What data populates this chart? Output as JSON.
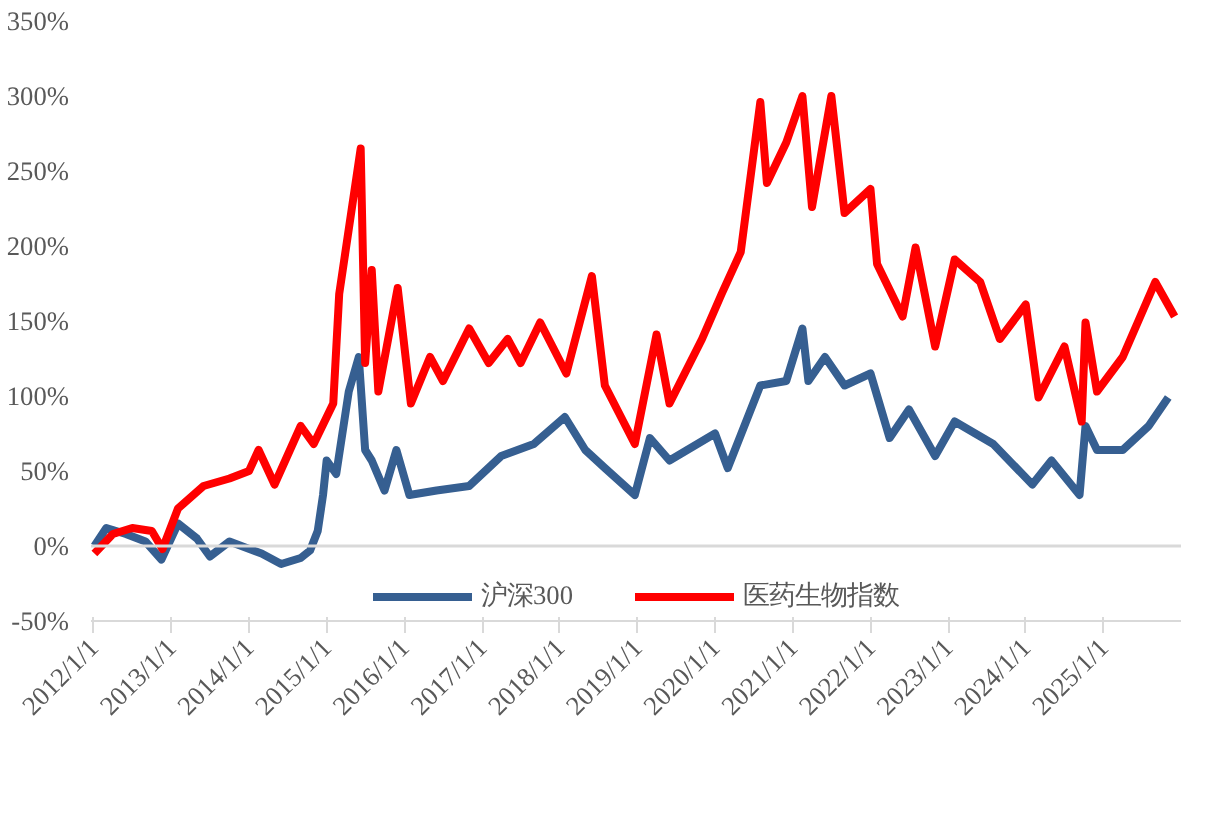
{
  "chart_data": {
    "type": "line",
    "ylim": [
      -50,
      350
    ],
    "yticks": [
      {
        "value": -50,
        "label": "-50%"
      },
      {
        "value": 0,
        "label": "0%"
      },
      {
        "value": 50,
        "label": "50%"
      },
      {
        "value": 100,
        "label": "100%"
      },
      {
        "value": 150,
        "label": "150%"
      },
      {
        "value": 200,
        "label": "200%"
      },
      {
        "value": 250,
        "label": "250%"
      },
      {
        "value": 300,
        "label": "300%"
      },
      {
        "value": 350,
        "label": "350%"
      }
    ],
    "xlim": [
      "2011-12-20",
      "2025-12-31"
    ],
    "xticks": [
      {
        "value": "2012-01-01",
        "label": "2012/1/1"
      },
      {
        "value": "2013-01-01",
        "label": "2013/1/1"
      },
      {
        "value": "2014-01-01",
        "label": "2014/1/1"
      },
      {
        "value": "2015-01-01",
        "label": "2015/1/1"
      },
      {
        "value": "2016-01-01",
        "label": "2016/1/1"
      },
      {
        "value": "2017-01-01",
        "label": "2017/1/1"
      },
      {
        "value": "2018-01-01",
        "label": "2018/1/1"
      },
      {
        "value": "2019-01-01",
        "label": "2019/1/1"
      },
      {
        "value": "2020-01-01",
        "label": "2020/1/1"
      },
      {
        "value": "2021-01-01",
        "label": "2021/1/1"
      },
      {
        "value": "2022-01-01",
        "label": "2022/1/1"
      },
      {
        "value": "2023-01-01",
        "label": "2023/1/1"
      },
      {
        "value": "2024-01-01",
        "label": "2024/1/1"
      },
      {
        "value": "2025-01-01",
        "label": "2025/1/1"
      }
    ],
    "grid": false,
    "legend": "bottom",
    "ref_lines": [
      {
        "axis": "y",
        "value": 0,
        "color": "#d9d9d9"
      }
    ],
    "series": [
      {
        "name": "沪深300",
        "color": "#365f91",
        "x": [
          "2012-01-05",
          "2012-03-01",
          "2012-06-01",
          "2012-09-01",
          "2012-11-15",
          "2013-02-01",
          "2013-05-01",
          "2013-07-01",
          "2013-10-01",
          "2014-03-01",
          "2014-06-01",
          "2014-09-01",
          "2014-10-15",
          "2014-11-20",
          "2014-12-15",
          "2015-01-01",
          "2015-02-15",
          "2015-04-15",
          "2015-06-01",
          "2015-07-01",
          "2015-08-01",
          "2015-09-30",
          "2015-11-25",
          "2016-01-25",
          "2016-06-01",
          "2016-11-01",
          "2017-04-01",
          "2017-09-01",
          "2018-01-25",
          "2018-05-01",
          "2018-08-01",
          "2018-12-20",
          "2019-03-01",
          "2019-06-01",
          "2020-01-01",
          "2020-03-01",
          "2020-08-01",
          "2020-12-01",
          "2021-02-15",
          "2021-03-15",
          "2021-06-01",
          "2021-09-01",
          "2022-01-01",
          "2022-04-01",
          "2022-07-01",
          "2022-11-01",
          "2023-02-01",
          "2023-08-01",
          "2024-02-01",
          "2024-05-01",
          "2024-09-10",
          "2024-10-08",
          "2024-12-01",
          "2025-04-01",
          "2025-08-01",
          "2025-11-01"
        ],
        "values": [
          0,
          12,
          8,
          3,
          -9,
          15,
          5,
          -7,
          3,
          -5,
          -12,
          -8,
          -3,
          10,
          34,
          57,
          48,
          103,
          126,
          64,
          57,
          37,
          64,
          34,
          37,
          40,
          60,
          68,
          86,
          64,
          52,
          34,
          72,
          57,
          75,
          52,
          107,
          110,
          145,
          110,
          126,
          107,
          115,
          72,
          91,
          60,
          83,
          68,
          41,
          57,
          34,
          80,
          64,
          64,
          80,
          99
        ]
      },
      {
        "name": "医药生物指数",
        "color": "#ff0000",
        "x": [
          "2012-01-05",
          "2012-04-01",
          "2012-07-01",
          "2012-10-01",
          "2012-11-20",
          "2013-02-01",
          "2013-06-01",
          "2013-10-01",
          "2014-01-01",
          "2014-02-15",
          "2014-05-01",
          "2014-09-01",
          "2014-11-01",
          "2015-02-01",
          "2015-03-01",
          "2015-06-10",
          "2015-07-01",
          "2015-08-01",
          "2015-09-01",
          "2015-12-01",
          "2016-02-01",
          "2016-05-01",
          "2016-07-01",
          "2016-11-01",
          "2017-02-01",
          "2017-05-01",
          "2017-07-01",
          "2017-10-01",
          "2018-02-01",
          "2018-06-01",
          "2018-08-01",
          "2018-12-20",
          "2019-04-01",
          "2019-06-01",
          "2019-11-01",
          "2020-02-01",
          "2020-05-01",
          "2020-08-01",
          "2020-09-01",
          "2020-12-01",
          "2021-02-15",
          "2021-04-01",
          "2021-07-01",
          "2021-09-01",
          "2022-01-01",
          "2022-02-01",
          "2022-06-01",
          "2022-08-01",
          "2022-11-01",
          "2023-02-01",
          "2023-06-01",
          "2023-09-01",
          "2024-01-01",
          "2024-03-01",
          "2024-07-01",
          "2024-09-20",
          "2024-10-08",
          "2024-12-01",
          "2025-04-01",
          "2025-09-01",
          "2025-12-01"
        ],
        "values": [
          -5,
          8,
          12,
          10,
          -2,
          25,
          40,
          45,
          50,
          64,
          41,
          80,
          68,
          95,
          168,
          265,
          122,
          184,
          103,
          172,
          95,
          126,
          110,
          145,
          122,
          138,
          122,
          149,
          115,
          180,
          107,
          68,
          141,
          95,
          138,
          168,
          196,
          296,
          242,
          269,
          300,
          226,
          300,
          222,
          238,
          188,
          153,
          199,
          133,
          191,
          176,
          138,
          161,
          99,
          133,
          83,
          149,
          103,
          126,
          176,
          153
        ]
      }
    ]
  }
}
